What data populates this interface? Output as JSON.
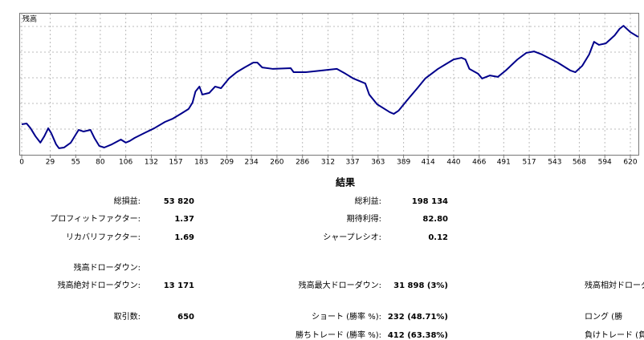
{
  "chart_data": {
    "type": "line",
    "label": "残高",
    "color": "#00008b",
    "x": [
      0,
      5,
      9,
      14,
      19,
      23,
      27,
      30,
      35,
      38,
      43,
      50,
      56,
      58,
      63,
      70,
      74,
      79,
      84,
      92,
      101,
      106,
      110,
      115,
      125,
      135,
      146,
      154,
      162,
      170,
      174,
      177,
      181,
      184,
      191,
      197,
      203,
      211,
      219,
      227,
      236,
      240,
      245,
      256,
      274,
      277,
      289,
      305,
      321,
      330,
      338,
      350,
      354,
      362,
      375,
      379,
      384,
      392,
      403,
      411,
      424,
      432,
      440,
      448,
      452,
      456,
      465,
      469,
      477,
      485,
      493,
      505,
      514,
      522,
      530,
      546,
      559,
      564,
      571,
      578,
      583,
      588,
      595,
      604,
      609,
      613,
      620,
      628
    ],
    "values": [
      0,
      400,
      -2200,
      -6600,
      -10100,
      -6600,
      -2200,
      -4800,
      -11000,
      -13200,
      -12800,
      -10100,
      -4800,
      -3100,
      -4000,
      -3100,
      -7500,
      -11900,
      -12800,
      -11000,
      -8400,
      -10100,
      -9200,
      -7500,
      -4800,
      -2200,
      1300,
      3100,
      5700,
      8400,
      11900,
      18000,
      20700,
      16300,
      17200,
      20700,
      19800,
      25100,
      28600,
      31200,
      33900,
      33900,
      31200,
      30400,
      30800,
      28600,
      28600,
      29500,
      30400,
      27700,
      25100,
      22400,
      16300,
      11000,
      6600,
      5700,
      7500,
      12800,
      19800,
      25100,
      30400,
      33000,
      35600,
      36500,
      35600,
      30400,
      27700,
      25100,
      26800,
      26000,
      29500,
      35600,
      39200,
      40000,
      38300,
      33900,
      29500,
      28600,
      32100,
      38300,
      45300,
      43600,
      44400,
      48800,
      52400,
      54100,
      50600,
      48000
    ],
    "xlim": [
      -2.5,
      629
    ],
    "ylim": [
      -17200,
      61200
    ],
    "xticks": [
      0,
      29,
      55,
      80,
      106,
      132,
      157,
      183,
      209,
      234,
      260,
      286,
      312,
      337,
      363,
      389,
      414,
      440,
      466,
      491,
      517,
      543,
      568,
      594,
      620
    ],
    "grid": true
  },
  "report": {
    "title": "結果",
    "rows": [
      {
        "left_label": "総損益:",
        "left_value": "53 820",
        "mid_label": "総利益:",
        "mid_value": "198 134"
      },
      {
        "left_label": "プロフィットファクター:",
        "left_value": "1.37",
        "mid_label": "期待利得:",
        "mid_value": "82.80"
      },
      {
        "left_label": "リカバリファクター:",
        "left_value": "1.69",
        "mid_label": "シャープレシオ:",
        "mid_value": "0.12"
      },
      {
        "left_label": "残高ドローダウン:"
      },
      {
        "left_label": "残高絶対ドローダウン:",
        "left_value": "13 171",
        "mid_label": "残高最大ドローダウン:",
        "mid_value": "31 898 (3%)",
        "right_label": "残高相対ドローダウン"
      },
      {
        "left_label": "取引数:",
        "left_value": "650",
        "mid_label": "ショート (勝率 %):",
        "mid_value": "232 (48.71%)",
        "right_label": "ロング (勝"
      },
      {
        "mid_label": "勝ちトレード (勝率 %):",
        "mid_value": "412 (63.38%)",
        "right_label": "負けトレード (負"
      }
    ]
  }
}
